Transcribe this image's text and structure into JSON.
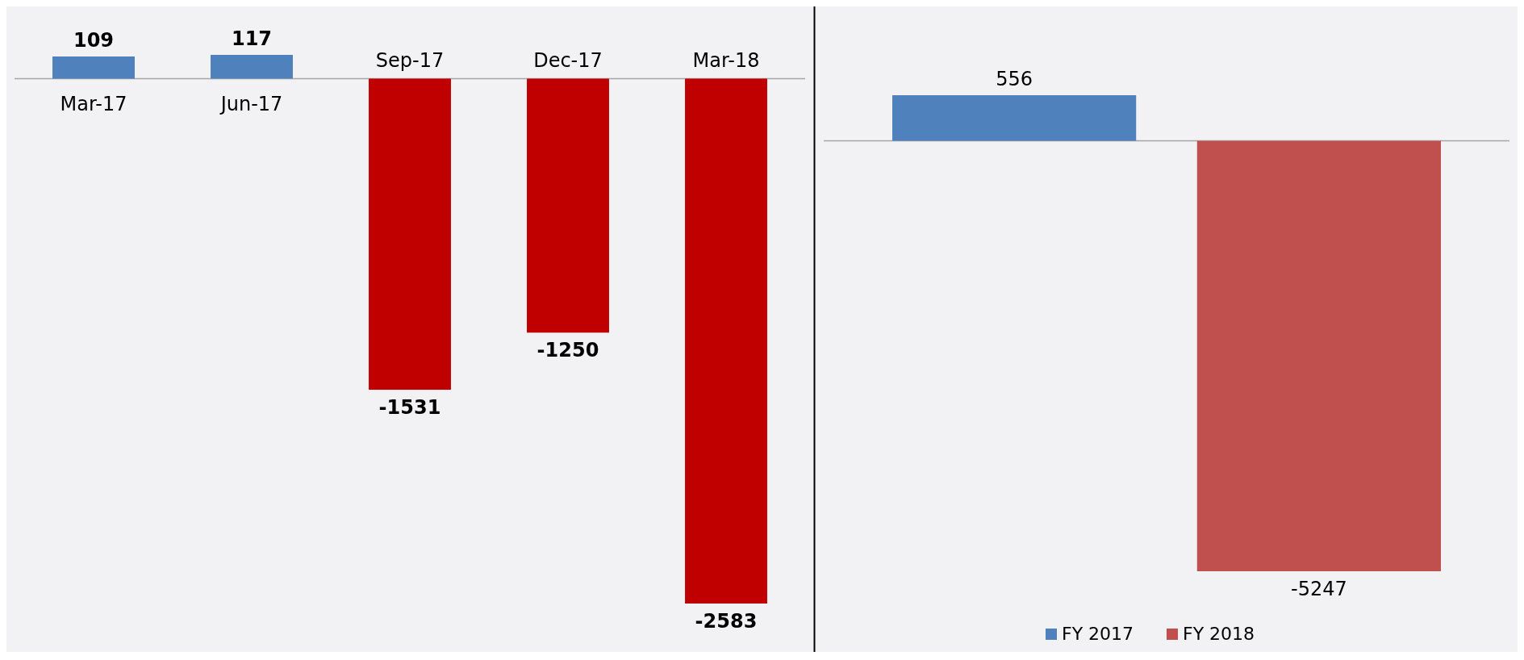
{
  "chart_data": [
    {
      "type": "bar",
      "categories": [
        "Mar-17",
        "Jun-17",
        "Sep-17",
        "Dec-17",
        "Mar-18"
      ],
      "values": [
        109,
        117,
        -1531,
        -1250,
        -2583
      ],
      "colors": [
        "#4f81bd",
        "#4f81bd",
        "#c00000",
        "#c00000",
        "#c00000"
      ],
      "data_labels": true
    },
    {
      "type": "bar",
      "categories": [
        null
      ],
      "series": [
        {
          "name": "FY 2017",
          "color": "#4f81bd",
          "values": [
            556
          ]
        },
        {
          "name": "FY 2018",
          "color": "#c0504d",
          "values": [
            -5247
          ]
        }
      ],
      "data_labels": true,
      "legend": "bottom"
    }
  ]
}
